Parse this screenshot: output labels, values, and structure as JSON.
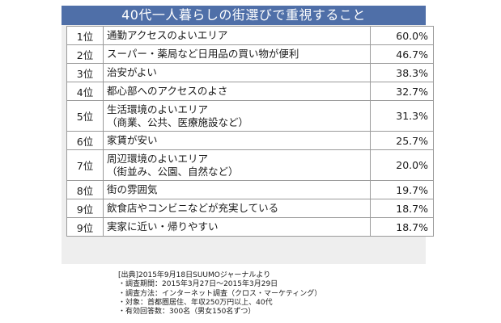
{
  "title": "40代一人暮らしの街選びで重視すること",
  "rows": [
    {
      "rank": "1位",
      "line1": "通勤アクセスのよいエリア",
      "line2": "",
      "pct": "60.0%"
    },
    {
      "rank": "2位",
      "line1": "スーパー・薬局など日用品の買い物が便利",
      "line2": "",
      "pct": "46.7%"
    },
    {
      "rank": "3位",
      "line1": "治安がよい",
      "line2": "",
      "pct": "38.3%"
    },
    {
      "rank": "4位",
      "line1": "都心部へのアクセスのよさ",
      "line2": "",
      "pct": "32.7%"
    },
    {
      "rank": "5位",
      "line1": "生活環境のよいエリア",
      "line2": "（商業、公共、医療施設など）",
      "pct": "31.3%"
    },
    {
      "rank": "6位",
      "line1": "家賃が安い",
      "line2": "",
      "pct": "25.7%"
    },
    {
      "rank": "7位",
      "line1": "周辺環境のよいエリア",
      "line2": "（街並み、公園、自然など）",
      "pct": "20.0%"
    },
    {
      "rank": "8位",
      "line1": "街の雰囲気",
      "line2": "",
      "pct": "19.7%"
    },
    {
      "rank": "9位",
      "line1": "飲食店やコンビニなどが充実している",
      "line2": "",
      "pct": "18.7%"
    },
    {
      "rank": "9位",
      "line1": "実家に近い・帰りやすい",
      "line2": "",
      "pct": "18.7%"
    }
  ],
  "notes": {
    "source": "[出典]2015年9月18日SUUMOジャーナルより",
    "period": "・調査期間：2015年3月27日～2015年3月29日",
    "method": "・調査方法：インターネット調査（クロス・マーケティング）",
    "target": "・対象：首都圏居住、年収250万円以上、40代",
    "responses": "・有効回答数：300名（男女150名ずつ）"
  }
}
